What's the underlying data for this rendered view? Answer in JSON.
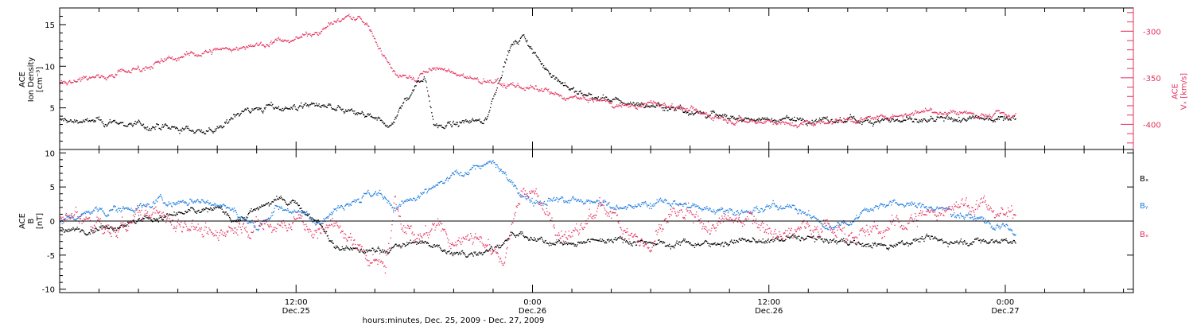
{
  "chart_data": [
    {
      "type": "scatter",
      "panel": "top",
      "ylabel_lines": [
        "ACE",
        "Ion Density",
        "[cm⁻³]"
      ],
      "ylim": [
        0,
        17
      ],
      "yticks": [
        5,
        10,
        15
      ],
      "ytick_labels": [
        "5",
        "10",
        "15"
      ],
      "y2label_lines": [
        "ACE",
        "Vₓ [km/s]"
      ],
      "y2lim": [
        -427,
        -275
      ],
      "y2ticks": [
        -300,
        -350,
        -400
      ],
      "y2tick_labels": [
        "-300",
        "-350",
        "-400"
      ],
      "series": [
        {
          "axis": "left",
          "color": "#000000",
          "anchors": [
            [
              0,
              3.5
            ],
            [
              3,
              3.2
            ],
            [
              5,
              2.6
            ],
            [
              7,
              2.3
            ],
            [
              8.2,
              2.4
            ],
            [
              9,
              4.6
            ],
            [
              10.5,
              5
            ],
            [
              12,
              5.1
            ],
            [
              13,
              5.4
            ],
            [
              14,
              4.8
            ],
            [
              15,
              4.3
            ],
            [
              16,
              3.6
            ],
            [
              16.8,
              2.8
            ],
            [
              17.4,
              5.5
            ],
            [
              18,
              7.5
            ],
            [
              18.5,
              9
            ],
            [
              19,
              3
            ],
            [
              20,
              2.9
            ],
            [
              21,
              3.5
            ],
            [
              21.7,
              3.8
            ],
            [
              22.2,
              8
            ],
            [
              22.8,
              12
            ],
            [
              23.5,
              13.5
            ],
            [
              24.5,
              10
            ],
            [
              25.5,
              8
            ],
            [
              26,
              7
            ],
            [
              28,
              5.8
            ],
            [
              30,
              5.3
            ],
            [
              31.5,
              4.9
            ],
            [
              32.5,
              4.4
            ],
            [
              34,
              3.8
            ],
            [
              36,
              3.6
            ],
            [
              38,
              3.6
            ],
            [
              39,
              3.3
            ],
            [
              40,
              3.5
            ],
            [
              42,
              3.6
            ],
            [
              44,
              3.3
            ],
            [
              45.5,
              3.6
            ],
            [
              47,
              3.7
            ],
            [
              48.5,
              4
            ]
          ],
          "noise": 0.5
        },
        {
          "axis": "right",
          "color": "#e4305c",
          "anchors": [
            [
              0,
              -355
            ],
            [
              2,
              -348
            ],
            [
              4,
              -340
            ],
            [
              6,
              -328
            ],
            [
              8,
              -320
            ],
            [
              10,
              -315
            ],
            [
              12,
              -308
            ],
            [
              13,
              -300
            ],
            [
              14,
              -290
            ],
            [
              14.5,
              -285
            ],
            [
              15.2,
              -287
            ],
            [
              15.8,
              -300
            ],
            [
              16.5,
              -330
            ],
            [
              17.2,
              -348
            ],
            [
              18,
              -350
            ],
            [
              19,
              -340
            ],
            [
              20,
              -345
            ],
            [
              21,
              -352
            ],
            [
              22,
              -356
            ],
            [
              23,
              -358
            ],
            [
              24,
              -362
            ],
            [
              25,
              -368
            ],
            [
              26,
              -372
            ],
            [
              27,
              -374
            ],
            [
              28,
              -378
            ],
            [
              29,
              -380
            ],
            [
              30,
              -378
            ],
            [
              31,
              -380
            ],
            [
              32,
              -385
            ],
            [
              33,
              -390
            ],
            [
              34,
              -394
            ],
            [
              35,
              -396
            ],
            [
              36,
              -396
            ],
            [
              37,
              -400
            ],
            [
              38,
              -398
            ],
            [
              39,
              -397
            ],
            [
              40,
              -394
            ],
            [
              41,
              -395
            ],
            [
              42,
              -392
            ],
            [
              43,
              -388
            ],
            [
              44,
              -385
            ],
            [
              45.5,
              -387
            ],
            [
              47,
              -390
            ],
            [
              48.5,
              -390
            ]
          ],
          "noise": 4
        }
      ]
    },
    {
      "type": "scatter",
      "panel": "bottom",
      "ylabel_lines": [
        "ACE",
        "B",
        "[nT]"
      ],
      "ylim": [
        -10.5,
        10.5
      ],
      "yticks": [
        10,
        5,
        0,
        -5,
        -10
      ],
      "ytick_labels": [
        "10",
        "5",
        "0",
        "-5",
        "-10"
      ],
      "xlim": [
        0,
        54.5
      ],
      "x": [
        "12:00",
        "0:00",
        "12:00",
        "0:00"
      ],
      "xtick_hours": [
        12,
        24,
        36,
        48
      ],
      "xtick_dates": [
        "Dec.25",
        "Dec.26",
        "Dec.26",
        "Dec.27"
      ],
      "xlabel": "hours:minutes, Dec. 25, 2009 - Dec. 27, 2009",
      "legend": [
        {
          "name": "Bₓ",
          "color": "#000000"
        },
        {
          "name": "Bᵧ",
          "color": "#1a7be0"
        },
        {
          "name": "Bₓ",
          "color": "#e4305c"
        }
      ],
      "series": [
        {
          "name": "Bₓ",
          "color": "#000000",
          "anchors": [
            [
              0,
              -1.5
            ],
            [
              2,
              -1
            ],
            [
              4,
              0
            ],
            [
              6,
              1
            ],
            [
              8,
              2
            ],
            [
              9,
              0
            ],
            [
              10,
              2
            ],
            [
              11,
              3
            ],
            [
              12,
              2.5
            ],
            [
              13,
              0
            ],
            [
              13.5,
              -2
            ],
            [
              14,
              -4
            ],
            [
              16,
              -4.5
            ],
            [
              17,
              -4
            ],
            [
              18,
              -3
            ],
            [
              19,
              -3.5
            ],
            [
              20,
              -5
            ],
            [
              21,
              -4.5
            ],
            [
              22,
              -4
            ],
            [
              23,
              -2
            ],
            [
              24,
              -3
            ],
            [
              25,
              -3
            ],
            [
              26,
              -3.5
            ],
            [
              27,
              -3
            ],
            [
              28,
              -2.5
            ],
            [
              29,
              -3
            ],
            [
              30,
              -3
            ],
            [
              31,
              -3.5
            ],
            [
              32,
              -3
            ],
            [
              33,
              -3.5
            ],
            [
              34,
              -3
            ],
            [
              35,
              -3
            ],
            [
              36,
              -3
            ],
            [
              37,
              -2.5
            ],
            [
              38,
              -2.5
            ],
            [
              39,
              -3
            ],
            [
              40,
              -3
            ],
            [
              41,
              -3.5
            ],
            [
              42,
              -3.5
            ],
            [
              43,
              -3
            ],
            [
              44,
              -2.5
            ],
            [
              45,
              -3
            ],
            [
              46,
              -3
            ],
            [
              47,
              -3
            ],
            [
              48.5,
              -3
            ]
          ],
          "noise": 0.6
        },
        {
          "name": "Bᵧ",
          "color": "#1a7be0",
          "anchors": [
            [
              0,
              0
            ],
            [
              2,
              1.5
            ],
            [
              4,
              2
            ],
            [
              5,
              3
            ],
            [
              6,
              2.5
            ],
            [
              7,
              3
            ],
            [
              8,
              2.5
            ],
            [
              9,
              1
            ],
            [
              10,
              -1
            ],
            [
              11,
              2
            ],
            [
              12,
              1.5
            ],
            [
              13,
              0
            ],
            [
              14,
              2
            ],
            [
              15,
              3.5
            ],
            [
              16,
              4
            ],
            [
              17,
              2
            ],
            [
              18,
              3
            ],
            [
              19,
              5
            ],
            [
              20,
              6.5
            ],
            [
              21,
              8
            ],
            [
              22,
              8.5
            ],
            [
              23,
              5
            ],
            [
              24,
              3
            ],
            [
              25,
              3.5
            ],
            [
              26,
              3
            ],
            [
              27,
              2.5
            ],
            [
              28,
              2.5
            ],
            [
              29,
              2
            ],
            [
              30,
              2.5
            ],
            [
              31,
              3
            ],
            [
              32,
              2
            ],
            [
              33,
              2
            ],
            [
              34,
              1.5
            ],
            [
              35,
              1.5
            ],
            [
              36,
              2
            ],
            [
              37,
              2.5
            ],
            [
              38,
              1
            ],
            [
              39,
              -1
            ],
            [
              40,
              0
            ],
            [
              41,
              2
            ],
            [
              42,
              2.5
            ],
            [
              43,
              2.5
            ],
            [
              44,
              2
            ],
            [
              45,
              1.5
            ],
            [
              46,
              1
            ],
            [
              47,
              0
            ],
            [
              48,
              -1
            ],
            [
              48.5,
              -2
            ]
          ],
          "noise": 0.7
        },
        {
          "name": "Bₓ",
          "color": "#e4305c",
          "anchors": [
            [
              0,
              0
            ],
            [
              1,
              0.5
            ],
            [
              2,
              -1
            ],
            [
              3,
              -1.5
            ],
            [
              4,
              0.5
            ],
            [
              5,
              1
            ],
            [
              6,
              0
            ],
            [
              7,
              -1
            ],
            [
              8,
              -2.5
            ],
            [
              9,
              -0.5
            ],
            [
              10,
              -1
            ],
            [
              11,
              -0.5
            ],
            [
              12,
              0
            ],
            [
              13,
              -2
            ],
            [
              14,
              0
            ],
            [
              15,
              -4
            ],
            [
              16,
              -6
            ],
            [
              16.5,
              -7
            ],
            [
              17,
              2
            ],
            [
              18,
              -3
            ],
            [
              19,
              0
            ],
            [
              20,
              -3
            ],
            [
              21,
              -2
            ],
            [
              22,
              -4
            ],
            [
              22.5,
              -6
            ],
            [
              23,
              0
            ],
            [
              23.5,
              5
            ],
            [
              24,
              4
            ],
            [
              25,
              0
            ],
            [
              26,
              -3
            ],
            [
              27,
              1
            ],
            [
              28,
              2
            ],
            [
              29,
              -2
            ],
            [
              30,
              -4
            ],
            [
              31,
              1
            ],
            [
              32,
              0
            ],
            [
              33,
              -1
            ],
            [
              34,
              0
            ],
            [
              35,
              1
            ],
            [
              36,
              -1
            ],
            [
              37,
              -2
            ],
            [
              38,
              0
            ],
            [
              39,
              -1
            ],
            [
              40,
              -1.5
            ],
            [
              41,
              -2
            ],
            [
              42,
              -1
            ],
            [
              43,
              0
            ],
            [
              44,
              1
            ],
            [
              45,
              2
            ],
            [
              46,
              2.5
            ],
            [
              47,
              2
            ],
            [
              48,
              1
            ],
            [
              48.5,
              1
            ]
          ],
          "noise": 1.5
        }
      ]
    }
  ]
}
